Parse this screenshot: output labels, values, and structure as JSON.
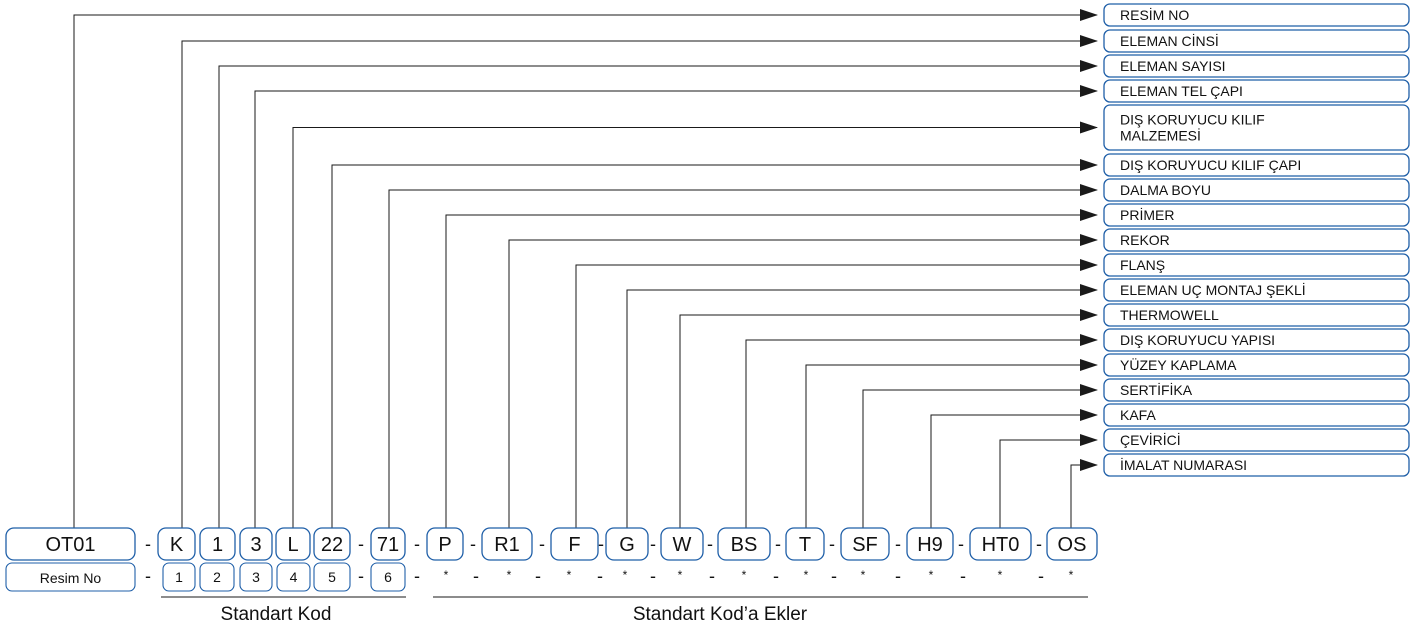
{
  "labels": [
    [
      "RESİM NO"
    ],
    [
      "ELEMAN CİNSİ"
    ],
    [
      "ELEMAN SAYISI"
    ],
    [
      "ELEMAN TEL ÇAPI"
    ],
    [
      "DIŞ KORUYUCU KILIF",
      "MALZEMESİ"
    ],
    [
      "DIŞ KORUYUCU KILIF ÇAPI"
    ],
    [
      "DALMA BOYU"
    ],
    [
      "PRİMER"
    ],
    [
      "REKOR"
    ],
    [
      "FLANŞ"
    ],
    [
      "ELEMAN UÇ MONTAJ ŞEKLİ"
    ],
    [
      "THERMOWELL"
    ],
    [
      "DIŞ KORUYUCU YAPISI"
    ],
    [
      "YÜZEY KAPLAMA"
    ],
    [
      "SERTİFİKA"
    ],
    [
      "KAFA"
    ],
    [
      "ÇEVİRİCİ"
    ],
    [
      "İMALAT NUMARASI"
    ]
  ],
  "code_row": [
    "OT01",
    "K",
    "1",
    "3",
    "L",
    "22",
    "71",
    "P",
    "R1",
    "F",
    "G",
    "W",
    "BS",
    "T",
    "SF",
    "H9",
    "HT0",
    "OS"
  ],
  "numbers_row": {
    "first": "Resim No",
    "boxed": [
      "1",
      "2",
      "3",
      "4",
      "5",
      "6"
    ],
    "star": "*"
  },
  "separator": "-",
  "groups": {
    "standard": "Standart Kod",
    "additions": "Standart Kod’a Ekler"
  },
  "colors": {
    "box_border": "#1f5fa8",
    "line": "#1a1a1a"
  }
}
